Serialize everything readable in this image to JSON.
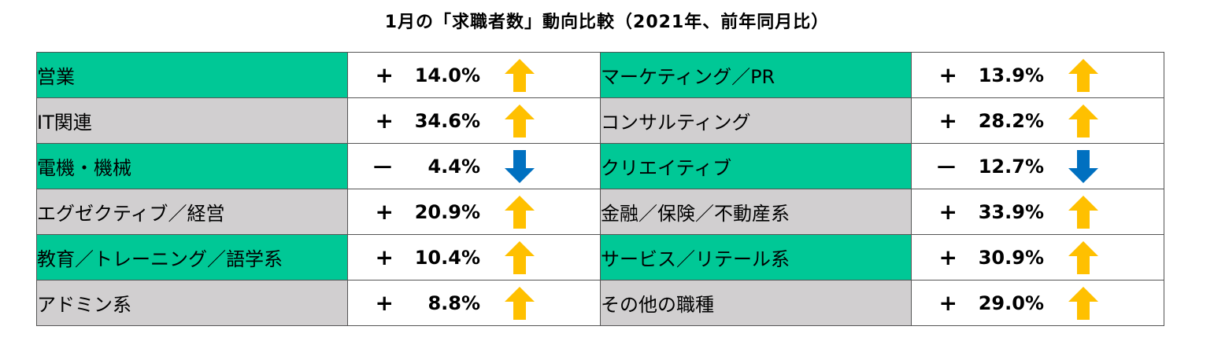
{
  "title": "1月の「求職者数」動向比較（2021年、前年同月比）",
  "colors": {
    "green": "#00C896",
    "gray": "#D1CFD0",
    "up_arrow": "#FFC000",
    "down_arrow": "#0070C0"
  },
  "chart_data": {
    "type": "table",
    "title": "1月の「求職者数」動向比較（2021年、前年同月比）",
    "rows": [
      {
        "left": {
          "category": "営業",
          "sign": "+",
          "value": "14.0%",
          "direction": "up"
        },
        "right": {
          "category": "マーケティング／PR",
          "sign": "+",
          "value": "13.9%",
          "direction": "up"
        },
        "fill": "green"
      },
      {
        "left": {
          "category": "IT関連",
          "sign": "+",
          "value": "34.6%",
          "direction": "up"
        },
        "right": {
          "category": "コンサルティング",
          "sign": "+",
          "value": "28.2%",
          "direction": "up"
        },
        "fill": "gray"
      },
      {
        "left": {
          "category": "電機・機械",
          "sign": "－",
          "value": "4.4%",
          "direction": "down"
        },
        "right": {
          "category": "クリエイティブ",
          "sign": "－",
          "value": "12.7%",
          "direction": "down"
        },
        "fill": "green"
      },
      {
        "left": {
          "category": "エグゼクティブ／経営",
          "sign": "+",
          "value": "20.9%",
          "direction": "up"
        },
        "right": {
          "category": "金融／保険／不動産系",
          "sign": "+",
          "value": "33.9%",
          "direction": "up"
        },
        "fill": "gray"
      },
      {
        "left": {
          "category": "教育／トレーニング／語学系",
          "sign": "+",
          "value": "10.4%",
          "direction": "up"
        },
        "right": {
          "category": "サービス／リテール系",
          "sign": "+",
          "value": "30.9%",
          "direction": "up"
        },
        "fill": "green"
      },
      {
        "left": {
          "category": "アドミン系",
          "sign": "+",
          "value": "8.8%",
          "direction": "up"
        },
        "right": {
          "category": "その他の職種",
          "sign": "+",
          "value": "29.0%",
          "direction": "up"
        },
        "fill": "gray"
      }
    ]
  }
}
